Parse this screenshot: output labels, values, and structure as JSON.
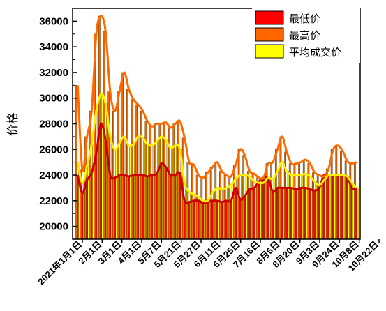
{
  "chart_data": {
    "type": "bar",
    "ylabel": "价格",
    "xlabel": "",
    "ylim": [
      19000,
      37000
    ],
    "yticks": [
      20000,
      22000,
      24000,
      26000,
      28000,
      30000,
      32000,
      34000,
      36000
    ],
    "ytick_labels": [
      "20000",
      "22000",
      "24000",
      "26000",
      "28000",
      "30000",
      "32000",
      "34000",
      "36000"
    ],
    "xticks": [
      "2021年1月1日",
      "2月1日",
      "3月1日",
      "4月1日",
      "5月7日",
      "5月21日",
      "5月27日",
      "6月11日",
      "6月25日",
      "7月16日",
      "8月6日",
      "8月20日",
      "9月3日",
      "9月24日",
      "10月8日",
      "10月22日"
    ],
    "legend_position": "top-right",
    "series": [
      {
        "name": "最低价",
        "color": "#ff0000",
        "style": "bar",
        "values": [
          24000,
          22600,
          23600,
          24200,
          25700,
          28000,
          26700,
          24000,
          23800,
          24000,
          24000,
          23900,
          24000,
          24000,
          24000,
          23900,
          24000,
          24100,
          24900,
          24600,
          24000,
          24000,
          24100,
          22000,
          21900,
          22000,
          22000,
          21800,
          21900,
          22000,
          22000,
          21900,
          22000,
          22000,
          23000,
          22100,
          22400,
          22900,
          23000,
          23500,
          23800,
          23700,
          22700,
          23000,
          23000,
          23000,
          23000,
          22900,
          23000,
          23000,
          22900,
          22800,
          23000,
          24000,
          24000,
          24000,
          24000,
          24000,
          23900,
          23000,
          23000
        ]
      },
      {
        "name": "最高价",
        "color": "#ff6600",
        "style": "bar",
        "values": [
          31000,
          24400,
          27000,
          29000,
          35000,
          36400,
          35200,
          30500,
          29000,
          30500,
          32000,
          30700,
          29900,
          29500,
          29000,
          28200,
          27800,
          28000,
          28000,
          28100,
          27700,
          28000,
          28200,
          26900,
          25000,
          24800,
          24000,
          23800,
          24200,
          24600,
          25000,
          24300,
          24000,
          23900,
          24800,
          26000,
          25500,
          24300,
          24100,
          23800,
          23800,
          24900,
          25000,
          26000,
          27000,
          25800,
          24900,
          24900,
          25000,
          25200,
          24900,
          24200,
          24000,
          23900,
          24500,
          26000,
          26300,
          25900,
          25100,
          24900,
          25000
        ]
      },
      {
        "name": "平均成交价",
        "color": "#ffff00",
        "style": "bar",
        "values": [
          25000,
          23400,
          24700,
          26400,
          29000,
          30300,
          29600,
          27000,
          26000,
          26500,
          27000,
          26300,
          26400,
          27000,
          26900,
          26400,
          26300,
          26600,
          27000,
          26700,
          26100,
          26300,
          26000,
          23400,
          22700,
          22500,
          22300,
          22000,
          22000,
          22600,
          23000,
          22900,
          23000,
          23200,
          23700,
          24000,
          24000,
          23900,
          23500,
          23400,
          23400,
          23800,
          23700,
          24300,
          25000,
          24300,
          24000,
          24000,
          24000,
          24100,
          23900,
          23500,
          23200,
          23600,
          24000,
          24000,
          24000,
          24000,
          23900,
          23400,
          23000
        ]
      }
    ]
  }
}
